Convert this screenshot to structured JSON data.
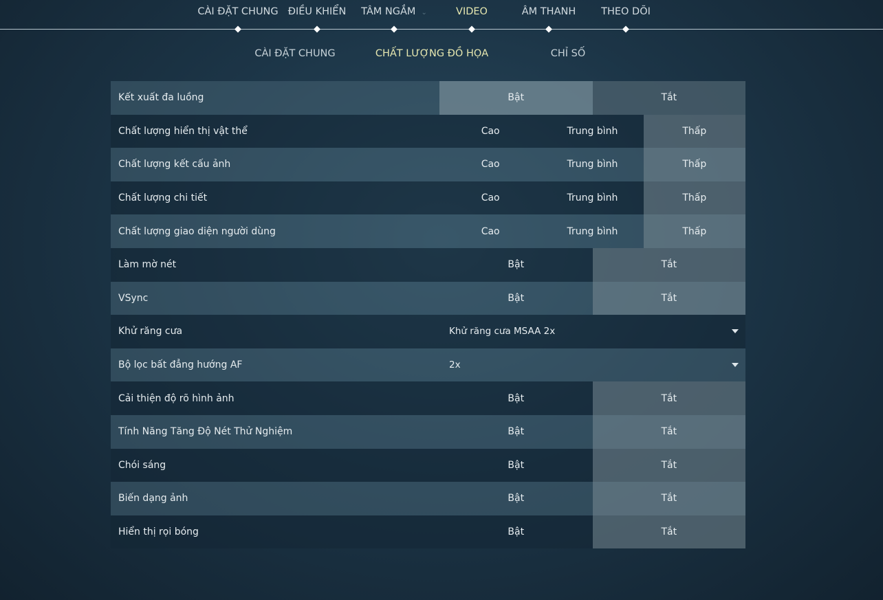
{
  "top_tabs": [
    {
      "label": "CÀI ĐẶT CHUNG"
    },
    {
      "label": "ĐIỀU KHIỂN"
    },
    {
      "label": "TÂM NGẮM"
    },
    {
      "label": "VIDEO"
    },
    {
      "label": "ÂM THANH"
    },
    {
      "label": "THEO DÕI"
    }
  ],
  "top_active": "VIDEO",
  "sub_tabs": [
    {
      "label": "CÀI ĐẶT CHUNG"
    },
    {
      "label": "CHẤT LƯỢNG ĐỒ HỌA"
    },
    {
      "label": "CHỈ SỐ"
    }
  ],
  "sub_active": "CHẤT LƯỢNG ĐỒ HỌA",
  "colors": {
    "active_tab": "#e6e7b0",
    "selected_option": "#788a94"
  },
  "settings": [
    {
      "label": "Kết xuất đa luồng",
      "options": [
        "Bật",
        "Tắt"
      ],
      "selected": "Bật"
    },
    {
      "label": "Chất lượng hiển thị vật thể",
      "options": [
        "Cao",
        "Trung bình",
        "Thấp"
      ],
      "selected": "Thấp"
    },
    {
      "label": "Chất lượng kết cấu ảnh",
      "options": [
        "Cao",
        "Trung bình",
        "Thấp"
      ],
      "selected": "Thấp"
    },
    {
      "label": "Chất lượng chi tiết",
      "options": [
        "Cao",
        "Trung bình",
        "Thấp"
      ],
      "selected": "Thấp"
    },
    {
      "label": "Chất lượng giao diện người dùng",
      "options": [
        "Cao",
        "Trung bình",
        "Thấp"
      ],
      "selected": "Thấp"
    },
    {
      "label": "Làm mờ nét",
      "options": [
        "Bật",
        "Tắt"
      ],
      "selected": "Tắt"
    },
    {
      "label": "VSync",
      "options": [
        "Bật",
        "Tắt"
      ],
      "selected": "Tắt"
    },
    {
      "label": "Khử răng cưa",
      "dropdown": "Khử răng cưa MSAA 2x"
    },
    {
      "label": "Bộ lọc bất đẳng hướng AF",
      "dropdown": "2x"
    },
    {
      "label": "Cải thiện độ rõ hình ảnh",
      "options": [
        "Bật",
        "Tắt"
      ],
      "selected": "Tắt"
    },
    {
      "label": "Tính Năng Tăng Độ Nét Thử Nghiệm",
      "options": [
        "Bật",
        "Tắt"
      ],
      "selected": "Tắt"
    },
    {
      "label": "Chói sáng",
      "options": [
        "Bật",
        "Tắt"
      ],
      "selected": "Tắt"
    },
    {
      "label": "Biến dạng ảnh",
      "options": [
        "Bật",
        "Tắt"
      ],
      "selected": "Tắt"
    },
    {
      "label": "Hiển thị rọi bóng",
      "options": [
        "Bật",
        "Tắt"
      ],
      "selected": "Tắt"
    }
  ]
}
